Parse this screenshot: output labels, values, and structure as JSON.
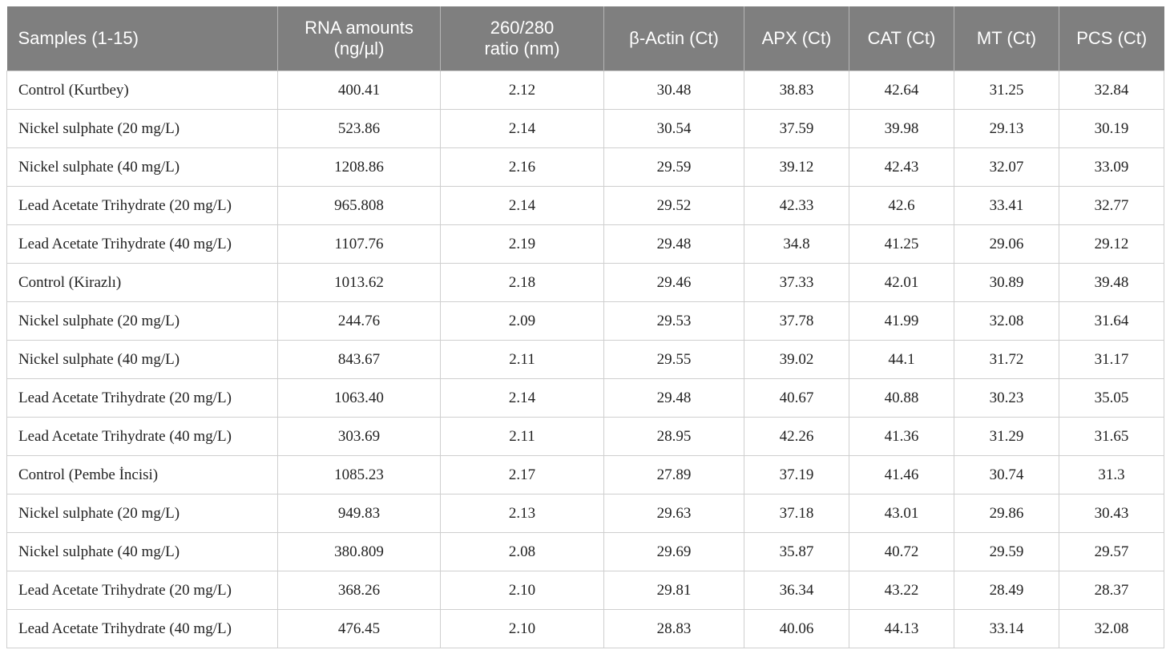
{
  "table": {
    "headers": [
      "Samples (1-15)",
      "RNA amounts\n(ng/µl)",
      "260/280\nratio (nm)",
      "β-Actin (Ct)",
      "APX (Ct)",
      "CAT (Ct)",
      "MT (Ct)",
      "PCS (Ct)"
    ],
    "rows": [
      [
        "Control (Kurtbey)",
        "400.41",
        "2.12",
        "30.48",
        "38.83",
        "42.64",
        "31.25",
        "32.84"
      ],
      [
        "Nickel sulphate (20 mg/L)",
        "523.86",
        "2.14",
        "30.54",
        "37.59",
        "39.98",
        "29.13",
        "30.19"
      ],
      [
        "Nickel sulphate (40 mg/L)",
        "1208.86",
        "2.16",
        "29.59",
        "39.12",
        "42.43",
        "32.07",
        "33.09"
      ],
      [
        "Lead Acetate Trihydrate (20 mg/L)",
        "965.808",
        "2.14",
        "29.52",
        "42.33",
        "42.6",
        "33.41",
        "32.77"
      ],
      [
        "Lead Acetate Trihydrate (40 mg/L)",
        "1107.76",
        "2.19",
        "29.48",
        "34.8",
        "41.25",
        "29.06",
        "29.12"
      ],
      [
        "Control (Kirazlı)",
        "1013.62",
        "2.18",
        "29.46",
        "37.33",
        "42.01",
        "30.89",
        "39.48"
      ],
      [
        "Nickel sulphate (20 mg/L)",
        "244.76",
        "2.09",
        "29.53",
        "37.78",
        "41.99",
        "32.08",
        "31.64"
      ],
      [
        "Nickel sulphate (40 mg/L)",
        "843.67",
        "2.11",
        "29.55",
        "39.02",
        "44.1",
        "31.72",
        "31.17"
      ],
      [
        "Lead Acetate Trihydrate (20 mg/L)",
        "1063.40",
        "2.14",
        "29.48",
        "40.67",
        "40.88",
        "30.23",
        "35.05"
      ],
      [
        "Lead Acetate Trihydrate (40 mg/L)",
        "303.69",
        "2.11",
        "28.95",
        "42.26",
        "41.36",
        "31.29",
        "31.65"
      ],
      [
        "Control (Pembe İncisi)",
        "1085.23",
        "2.17",
        "27.89",
        "37.19",
        "41.46",
        "30.74",
        "31.3"
      ],
      [
        "Nickel sulphate (20 mg/L)",
        "949.83",
        "2.13",
        "29.63",
        "37.18",
        "43.01",
        "29.86",
        "30.43"
      ],
      [
        "Nickel sulphate (40 mg/L)",
        "380.809",
        "2.08",
        "29.69",
        "35.87",
        "40.72",
        "29.59",
        "29.57"
      ],
      [
        "Lead Acetate Trihydrate (20 mg/L)",
        "368.26",
        "2.10",
        "29.81",
        "36.34",
        "43.22",
        "28.49",
        "28.37"
      ],
      [
        "Lead Acetate Trihydrate (40 mg/L)",
        "476.45",
        "2.10",
        "28.83",
        "40.06",
        "44.13",
        "33.14",
        "32.08"
      ]
    ]
  },
  "colors": {
    "header_background": "#7f7f7f",
    "header_text": "#ffffff",
    "grid_line": "#cfcfcf",
    "body_text": "#222222"
  }
}
